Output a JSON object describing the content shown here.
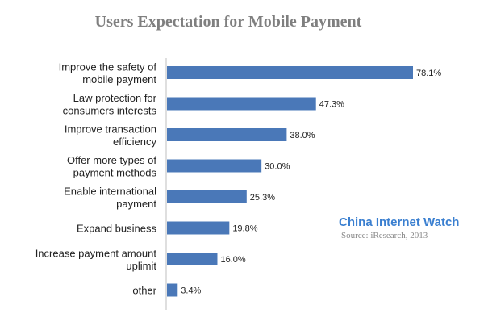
{
  "chart_data": {
    "type": "bar",
    "orientation": "horizontal",
    "title": "Users Expectation for Mobile Payment",
    "categories": [
      [
        "Improve the safety of",
        "mobile payment"
      ],
      [
        "Law protection for",
        "consumers interests"
      ],
      [
        "Improve transaction",
        "efficiency"
      ],
      [
        "Offer more types of",
        "payment methods"
      ],
      [
        "Enable international",
        "payment"
      ],
      [
        "Expand business"
      ],
      [
        "Increase payment amount",
        "uplimit"
      ],
      [
        "other"
      ]
    ],
    "values": [
      78.1,
      47.3,
      38.0,
      30.0,
      25.3,
      19.8,
      16.0,
      3.4
    ],
    "value_labels": [
      "78.1%",
      "47.3%",
      "38.0%",
      "30.0%",
      "25.3%",
      "19.8%",
      "16.0%",
      "3.4%"
    ],
    "xlim": [
      0,
      100
    ],
    "grid": false,
    "bar_color": "#4a78b8"
  },
  "watermark": {
    "brand": "China Internet Watch",
    "source": "Source: iResearch, 2013",
    "color": "#3a7fd0"
  }
}
